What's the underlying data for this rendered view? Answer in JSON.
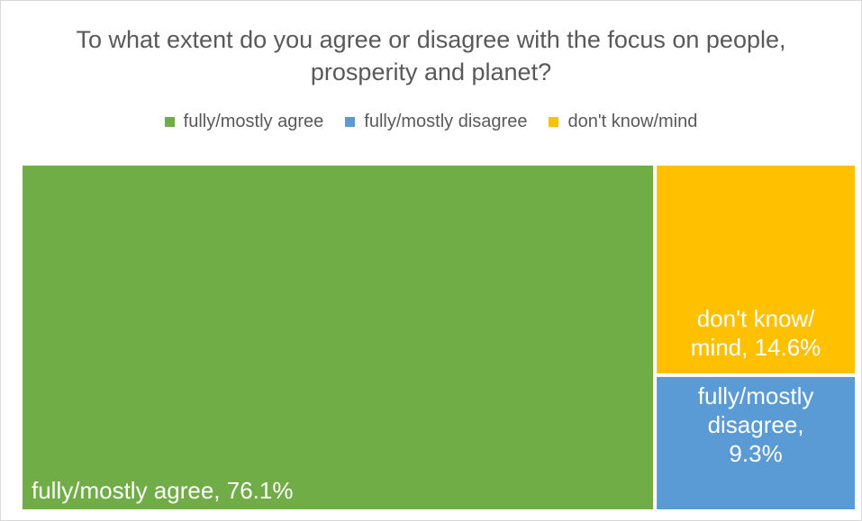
{
  "chart_data": {
    "type": "treemap",
    "title": "To what extent do you agree or disagree with the focus on people, prosperity and planet?",
    "legend_position": "top",
    "series": [
      {
        "name": "fully/mostly agree",
        "value": 76.1,
        "label": "fully/mostly agree, 76.1%",
        "color": "#70AD47"
      },
      {
        "name": "fully/mostly disagree",
        "value": 9.3,
        "label": "fully/mostly disagree, 9.3%",
        "color": "#5B9BD5"
      },
      {
        "name": "don't know/mind",
        "value": 14.6,
        "label": "don't know/ mind, 14.6%",
        "color": "#FFC000"
      }
    ]
  }
}
